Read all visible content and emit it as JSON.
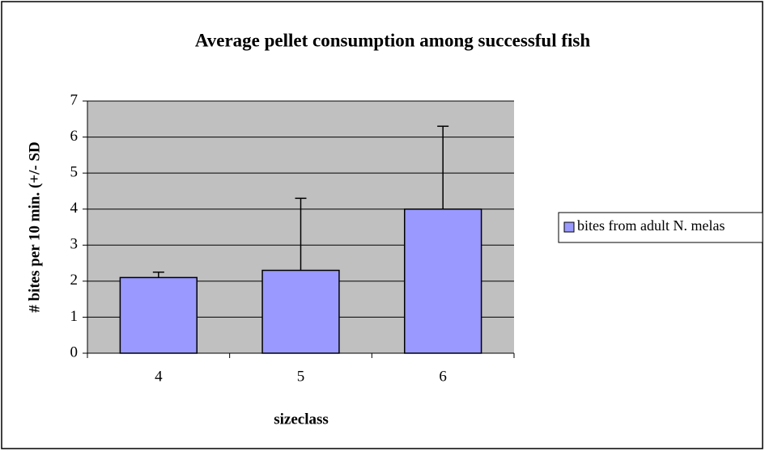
{
  "chart_data": {
    "type": "bar",
    "title": "Average pellet consumption among successful fish",
    "x_label": "sizeclass",
    "y_label": "# bites per 10 min. (+/- SD",
    "categories": [
      "4",
      "5",
      "6"
    ],
    "series": [
      {
        "name": "bites from adult N. melas",
        "color": "#9999ff",
        "values": [
          2.1,
          2.3,
          4.0
        ],
        "errors": [
          0.15,
          2.0,
          2.3
        ]
      }
    ],
    "ylim": [
      0,
      7
    ],
    "yticks": [
      0,
      1,
      2,
      3,
      4,
      5,
      6,
      7
    ],
    "grid": true,
    "plot_background": "#c0c0c0",
    "legend": "right"
  }
}
